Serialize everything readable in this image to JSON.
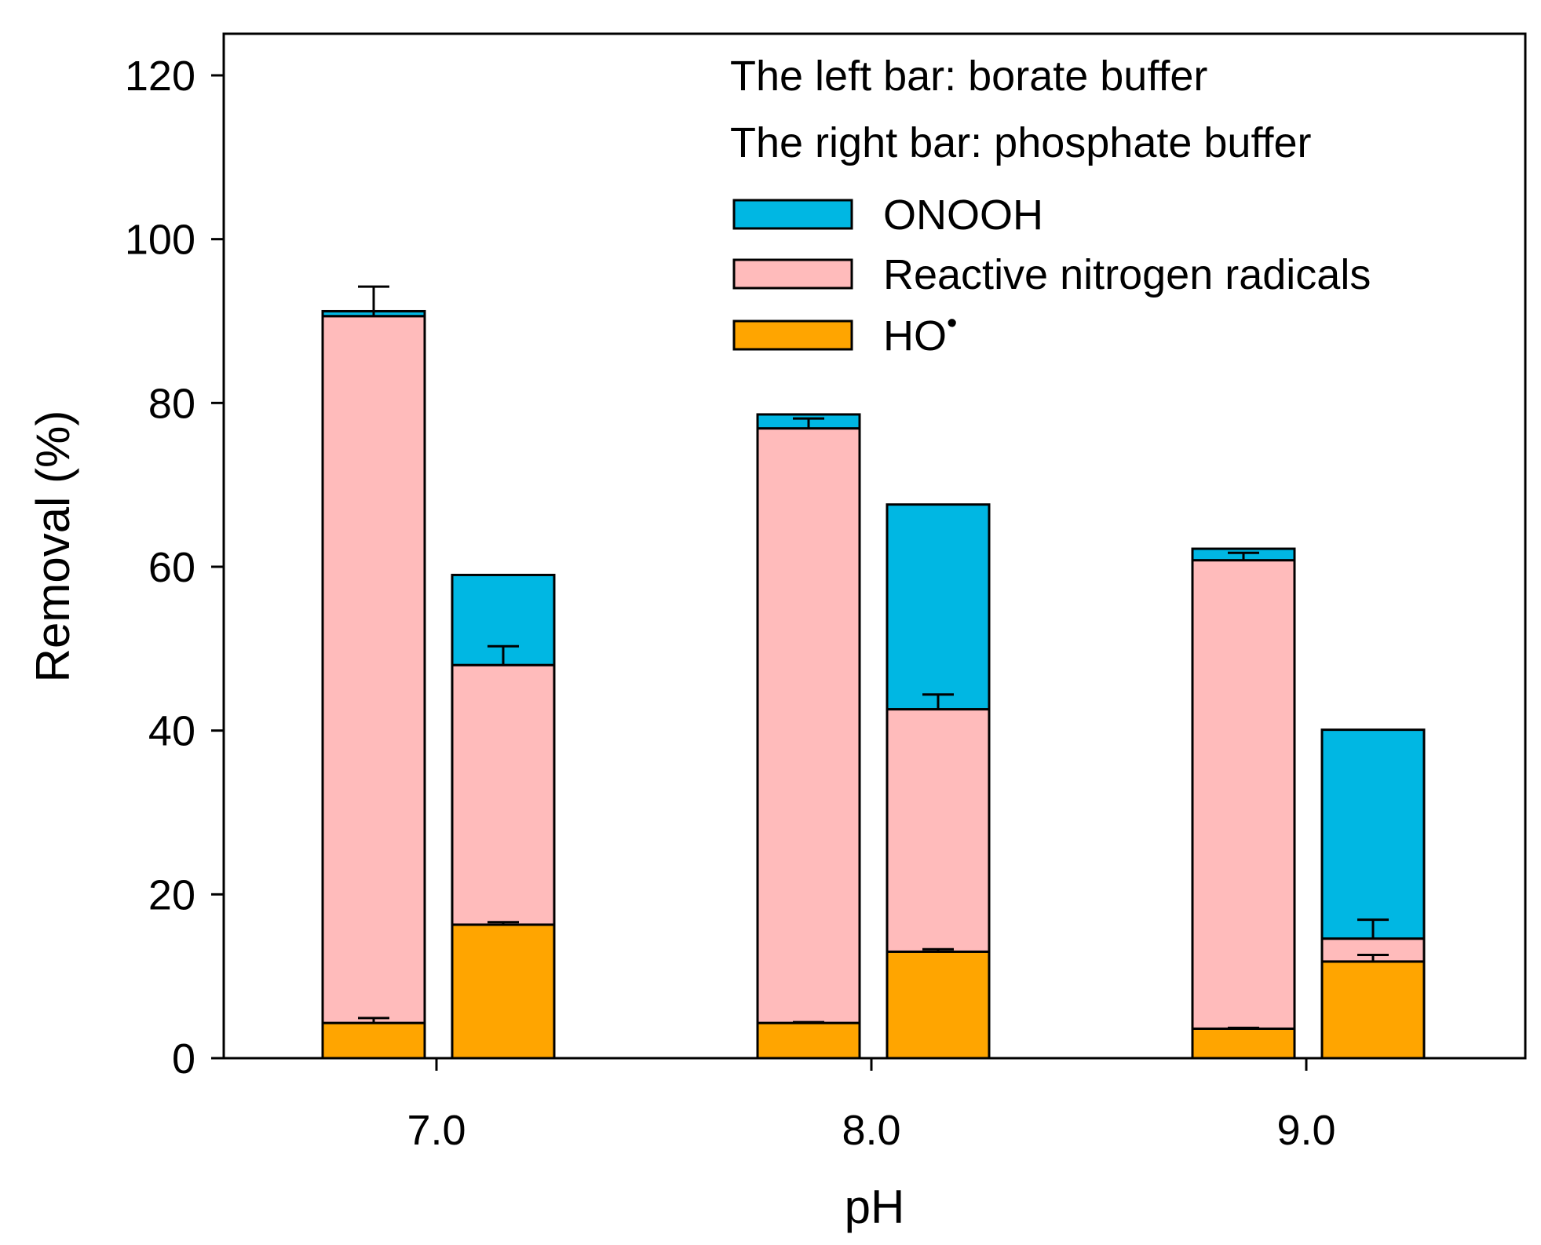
{
  "chart_data": {
    "type": "bar",
    "stacked": true,
    "title": "",
    "xlabel": "pH",
    "ylabel": "Removal (%)",
    "ylim": [
      0,
      125
    ],
    "yticks": [
      0,
      20,
      40,
      60,
      80,
      100,
      120
    ],
    "categories": [
      "7.0",
      "8.0",
      "9.0"
    ],
    "notes": [
      "The left bar: borate buffer",
      "The right bar: phosphate buffer"
    ],
    "buffers": [
      "borate",
      "phosphate"
    ],
    "series": [
      {
        "name": "HO",
        "superscript": "•",
        "color": "#FFA500",
        "values": {
          "borate": [
            4.3,
            4.3,
            3.6
          ],
          "phosphate": [
            16.3,
            13.0,
            11.8
          ]
        },
        "errors": {
          "borate": [
            0.6,
            0.1,
            0.1
          ],
          "phosphate": [
            0.3,
            0.3,
            0.8
          ]
        }
      },
      {
        "name": "Reactive nitrogen radicals",
        "color": "#FFBBBB",
        "values": {
          "borate": [
            86.3,
            72.6,
            57.2
          ],
          "phosphate": [
            31.7,
            29.6,
            2.8
          ]
        },
        "errors": {
          "borate": [
            3.6,
            1.2,
            0.9
          ],
          "phosphate": [
            2.3,
            1.8,
            2.3
          ]
        }
      },
      {
        "name": "ONOOH",
        "color": "#00B7E3",
        "values": {
          "borate": [
            0.6,
            1.7,
            1.4
          ],
          "phosphate": [
            11.0,
            25.0,
            25.5
          ]
        },
        "errors": {
          "borate": [
            0,
            0,
            0
          ],
          "phosphate": [
            0,
            0,
            0
          ]
        }
      }
    ],
    "legend": {
      "position": "top-right",
      "order": [
        "ONOOH",
        "Reactive nitrogen radicals",
        "HO"
      ]
    }
  }
}
